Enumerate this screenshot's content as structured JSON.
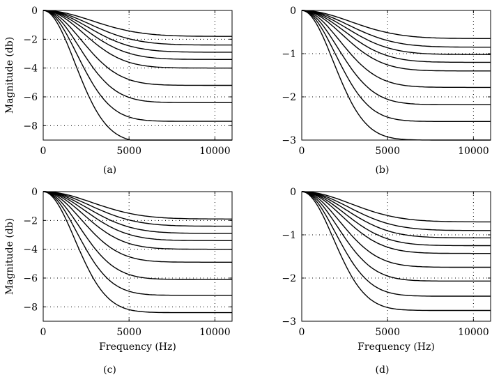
{
  "figure": {
    "panels": [
      {
        "caption": "(a)"
      },
      {
        "caption": "(b)"
      },
      {
        "caption": "(c)"
      },
      {
        "caption": "(d)"
      }
    ]
  },
  "chart_data": [
    {
      "type": "line",
      "panel": "a",
      "title": "",
      "xlabel": "",
      "ylabel": "Magnitude (db)",
      "xlim": [
        0,
        11000
      ],
      "ylim": [
        -9,
        0
      ],
      "xticks": [
        0,
        5000,
        10000
      ],
      "yticks": [
        -8,
        -6,
        -4,
        -2,
        0
      ],
      "grid": true,
      "series": [
        {
          "endpoint": -1.8
        },
        {
          "endpoint": -2.4
        },
        {
          "endpoint": -2.9
        },
        {
          "endpoint": -3.4
        },
        {
          "endpoint": -4.0
        },
        {
          "endpoint": -5.2
        },
        {
          "endpoint": -6.4
        },
        {
          "endpoint": -7.7
        },
        {
          "endpoint": -9.2
        }
      ]
    },
    {
      "type": "line",
      "panel": "b",
      "title": "",
      "xlabel": "",
      "ylabel": "",
      "xlim": [
        0,
        11000
      ],
      "ylim": [
        -3,
        0
      ],
      "xticks": [
        0,
        5000,
        10000
      ],
      "yticks": [
        -3,
        -2,
        -1,
        0
      ],
      "grid": true,
      "series": [
        {
          "endpoint": -0.65
        },
        {
          "endpoint": -0.85
        },
        {
          "endpoint": -1.02
        },
        {
          "endpoint": -1.2
        },
        {
          "endpoint": -1.4
        },
        {
          "endpoint": -1.78
        },
        {
          "endpoint": -2.18
        },
        {
          "endpoint": -2.57
        },
        {
          "endpoint": -3.0
        }
      ]
    },
    {
      "type": "line",
      "panel": "c",
      "title": "",
      "xlabel": "Frequency (Hz)",
      "ylabel": "Magnitude (db)",
      "xlim": [
        0,
        11000
      ],
      "ylim": [
        -9,
        0
      ],
      "xticks": [
        0,
        5000,
        10000
      ],
      "yticks": [
        -8,
        -6,
        -4,
        -2,
        0
      ],
      "grid": true,
      "series": [
        {
          "endpoint": -1.9
        },
        {
          "endpoint": -2.4
        },
        {
          "endpoint": -2.9
        },
        {
          "endpoint": -3.4
        },
        {
          "endpoint": -4.0
        },
        {
          "endpoint": -4.9
        },
        {
          "endpoint": -6.1
        },
        {
          "endpoint": -7.2
        },
        {
          "endpoint": -8.4
        }
      ]
    },
    {
      "type": "line",
      "panel": "d",
      "title": "",
      "xlabel": "Frequency (Hz)",
      "ylabel": "",
      "xlim": [
        0,
        11000
      ],
      "ylim": [
        -3,
        0
      ],
      "xticks": [
        0,
        5000,
        10000
      ],
      "yticks": [
        -3,
        -2,
        -1,
        0
      ],
      "grid": true,
      "series": [
        {
          "endpoint": -0.7
        },
        {
          "endpoint": -0.9
        },
        {
          "endpoint": -1.07
        },
        {
          "endpoint": -1.25
        },
        {
          "endpoint": -1.43
        },
        {
          "endpoint": -1.75
        },
        {
          "endpoint": -2.07
        },
        {
          "endpoint": -2.42
        },
        {
          "endpoint": -2.75
        }
      ]
    }
  ]
}
